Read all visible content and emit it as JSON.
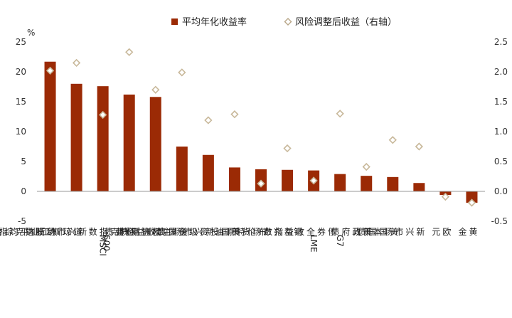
{
  "chart_data": {
    "type": "bar",
    "unit_label": "%",
    "categories": [
      "纳斯达克综合指数",
      "道琼斯工业平均指数",
      "MSCI 新兴市场股指",
      "标普500",
      "欧洲斯托克指数",
      "美国高收益企业债",
      "新兴市场主权信用债",
      "美国投资级企业债",
      "布伦特原油",
      "新兴市场货币",
      "LME 铜",
      "G7债券全收益指数",
      "美元",
      "美国国债",
      "新兴市场本币政府债",
      "欧元",
      "黄金"
    ],
    "series": [
      {
        "name": "平均年化收益率",
        "axis": "left",
        "kind": "bar",
        "color": "#9b2a05",
        "values": [
          21.7,
          18.0,
          17.6,
          16.2,
          15.8,
          7.5,
          6.1,
          4.0,
          3.7,
          3.6,
          3.5,
          2.9,
          2.6,
          2.4,
          1.4,
          -0.6,
          -1.9
        ]
      },
      {
        "name": "风险调整后收益（右轴）",
        "axis": "right",
        "kind": "marker",
        "marker": "diamond",
        "color": "#c8b89a",
        "values": [
          2.02,
          2.15,
          1.28,
          2.33,
          1.7,
          1.99,
          1.19,
          1.29,
          0.13,
          0.72,
          0.18,
          1.3,
          0.41,
          0.86,
          0.75,
          -0.09,
          -0.19
        ]
      }
    ],
    "ylim_left": [
      -5,
      25
    ],
    "yticks_left": [
      "-5",
      "0",
      "5",
      "10",
      "15",
      "20",
      "25"
    ],
    "ylim_right": [
      -0.5,
      2.5
    ],
    "yticks_right": [
      "-0.5",
      "0.0",
      "0.5",
      "1.0",
      "1.5",
      "2.0",
      "2.5"
    ],
    "grid": false,
    "legend_position": "top"
  }
}
